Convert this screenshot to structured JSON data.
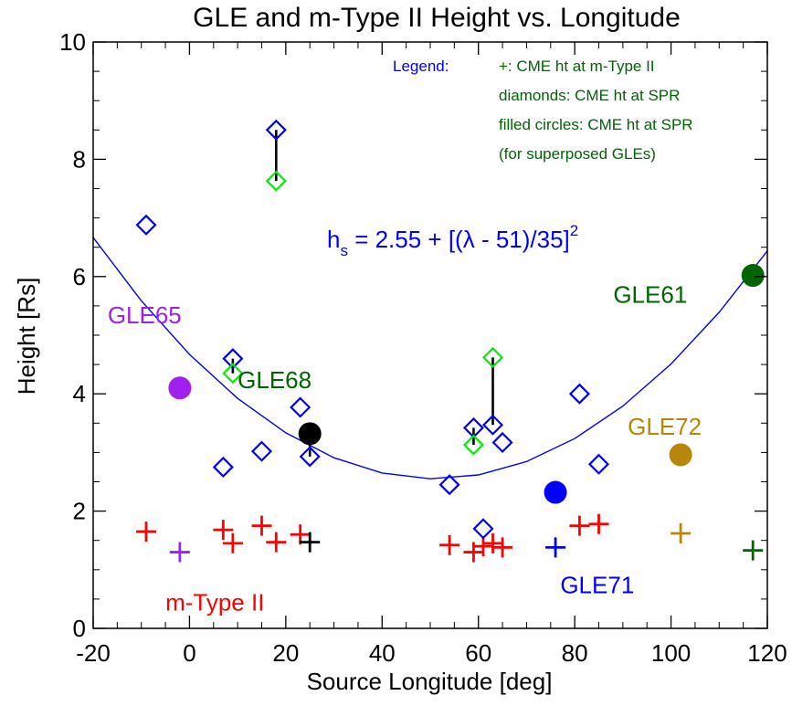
{
  "chart_data": {
    "type": "scatter",
    "title": "GLE and m-Type II Height vs. Longitude",
    "xlabel": "Source Longitude [deg]",
    "ylabel": "Height [Rs]",
    "xlim": [
      -20,
      120
    ],
    "ylim": [
      0,
      10
    ],
    "x_ticks": [
      "-20",
      "0",
      "20",
      "40",
      "60",
      "80",
      "100",
      "120"
    ],
    "y_ticks": [
      "0",
      "2",
      "4",
      "6",
      "8",
      "10"
    ],
    "legend": {
      "heading": "Legend:",
      "lines": [
        "+: CME ht at m-Type II",
        "diamonds: CME ht at SPR",
        "filled circles: CME ht at SPR",
        "(for superposed GLEs)"
      ]
    },
    "equation": {
      "base": "h",
      "sub": "s",
      "body": " = 2.55 + [(λ - 51)/35]",
      "sup": "2"
    },
    "fit_curve": {
      "a": 2.55,
      "center": 51,
      "scale": 35,
      "color": "#0000ff"
    },
    "labels": [
      {
        "text": "GLE65",
        "x": -17,
        "y": 5.2,
        "color": "#a020f0"
      },
      {
        "text": "GLE68",
        "x": 10,
        "y": 4.1,
        "color": "#006400"
      },
      {
        "text": "GLE61",
        "x": 88,
        "y": 5.55,
        "color": "#006400"
      },
      {
        "text": "GLE72",
        "x": 91,
        "y": 3.3,
        "color": "#b8860b"
      },
      {
        "text": "GLE71",
        "x": 77,
        "y": 0.6,
        "color": "#0000ff"
      },
      {
        "text": "m-Type II",
        "x": -5,
        "y": 0.3,
        "color": "#ff0000"
      }
    ],
    "series": [
      {
        "marker": "plus",
        "values": [
          {
            "x": -9,
            "y": 1.65,
            "color": "#ff0000"
          },
          {
            "x": -2,
            "y": 1.3,
            "color": "#a020f0"
          },
          {
            "x": 7,
            "y": 1.68,
            "color": "#ff0000"
          },
          {
            "x": 9,
            "y": 1.45,
            "color": "#ff0000"
          },
          {
            "x": 15,
            "y": 1.75,
            "color": "#ff0000"
          },
          {
            "x": 18,
            "y": 1.47,
            "color": "#ff0000"
          },
          {
            "x": 23,
            "y": 1.6,
            "color": "#ff0000"
          },
          {
            "x": 25,
            "y": 1.47,
            "color": "#000000"
          },
          {
            "x": 54,
            "y": 1.42,
            "color": "#ff0000"
          },
          {
            "x": 59,
            "y": 1.3,
            "color": "#ff0000"
          },
          {
            "x": 61,
            "y": 1.4,
            "color": "#ff0000"
          },
          {
            "x": 63,
            "y": 1.45,
            "color": "#ff0000"
          },
          {
            "x": 65,
            "y": 1.38,
            "color": "#ff0000"
          },
          {
            "x": 76,
            "y": 1.38,
            "color": "#0000ff"
          },
          {
            "x": 81,
            "y": 1.75,
            "color": "#ff0000"
          },
          {
            "x": 85,
            "y": 1.78,
            "color": "#ff0000"
          },
          {
            "x": 102,
            "y": 1.62,
            "color": "#b8860b"
          },
          {
            "x": 117,
            "y": 1.33,
            "color": "#006400"
          }
        ]
      },
      {
        "marker": "diamond",
        "values": [
          {
            "x": -9,
            "y": 6.88,
            "color": "#0000ff"
          },
          {
            "x": 7,
            "y": 2.75,
            "color": "#0000ff"
          },
          {
            "x": 9,
            "y": 4.6,
            "color": "#0000ff"
          },
          {
            "x": 9,
            "y": 4.35,
            "color": "#00ee00"
          },
          {
            "x": 15,
            "y": 3.02,
            "color": "#0000ff"
          },
          {
            "x": 18,
            "y": 8.5,
            "color": "#0000ff"
          },
          {
            "x": 18,
            "y": 7.63,
            "color": "#00ee00"
          },
          {
            "x": 23,
            "y": 3.77,
            "color": "#0000ff"
          },
          {
            "x": 25,
            "y": 2.93,
            "color": "#0000ff"
          },
          {
            "x": 54,
            "y": 2.45,
            "color": "#0000ff"
          },
          {
            "x": 59,
            "y": 3.42,
            "color": "#0000ff"
          },
          {
            "x": 59,
            "y": 3.13,
            "color": "#00ee00"
          },
          {
            "x": 61,
            "y": 1.7,
            "color": "#0000ff"
          },
          {
            "x": 63,
            "y": 4.62,
            "color": "#00ee00"
          },
          {
            "x": 63,
            "y": 3.47,
            "color": "#0000ff"
          },
          {
            "x": 65,
            "y": 3.17,
            "color": "#0000ff"
          },
          {
            "x": 81,
            "y": 4.0,
            "color": "#0000ff"
          },
          {
            "x": 85,
            "y": 2.8,
            "color": "#0000ff"
          }
        ]
      },
      {
        "marker": "filled-circle",
        "values": [
          {
            "x": -2,
            "y": 4.1,
            "color": "#a020f0"
          },
          {
            "x": 25,
            "y": 3.32,
            "color": "#000000"
          },
          {
            "x": 76,
            "y": 2.32,
            "color": "#0000ff"
          },
          {
            "x": 102,
            "y": 2.96,
            "color": "#b8860b"
          },
          {
            "x": 117,
            "y": 6.02,
            "color": "#006400"
          }
        ]
      }
    ],
    "height_bars": [
      {
        "x": 18,
        "y1": 7.63,
        "y2": 8.5
      },
      {
        "x": 63,
        "y1": 3.47,
        "y2": 4.62
      },
      {
        "x": 9,
        "y1": 4.35,
        "y2": 4.6
      },
      {
        "x": 59,
        "y1": 3.13,
        "y2": 3.42
      },
      {
        "x": 25,
        "y1": 2.93,
        "y2": 3.32
      }
    ]
  }
}
